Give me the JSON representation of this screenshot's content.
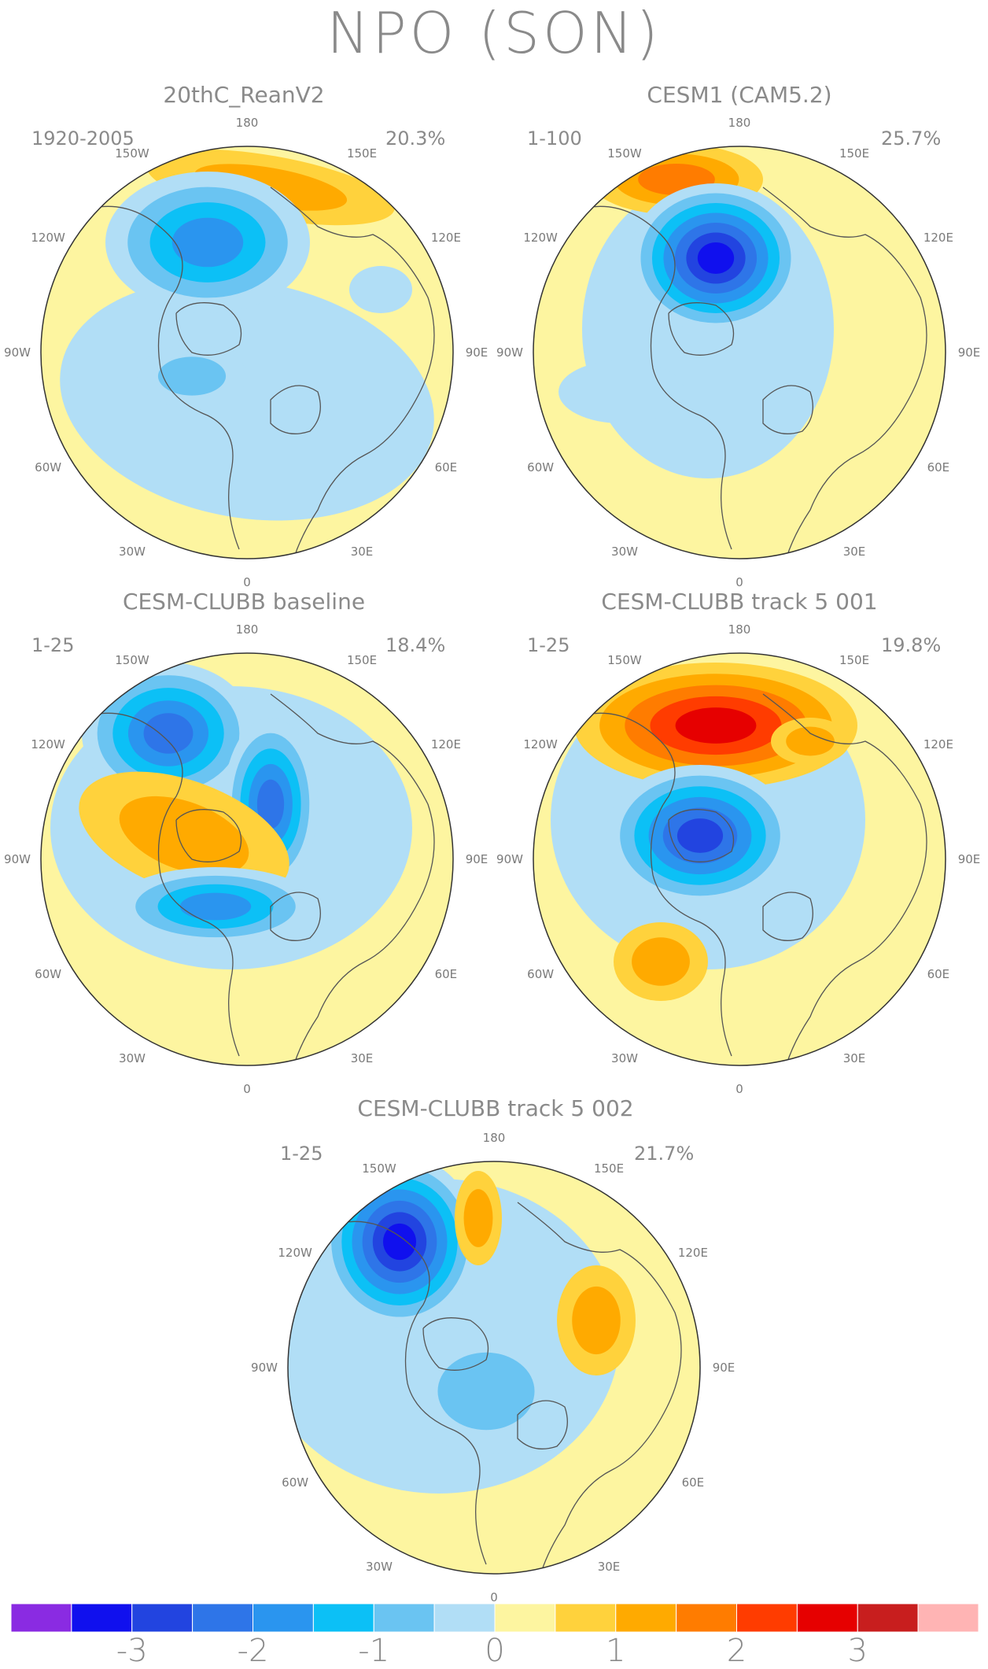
{
  "title": "NPO (SON)",
  "panels": [
    {
      "title": "20thC_ReanV2",
      "years": "1920-2005",
      "variance": "20.3%"
    },
    {
      "title": "CESM1 (CAM5.2)",
      "years": "1-100",
      "variance": "25.7%"
    },
    {
      "title": "CESM-CLUBB baseline",
      "years": "1-25",
      "variance": "18.4%"
    },
    {
      "title": "CESM-CLUBB track 5 001",
      "years": "1-25",
      "variance": "19.8%"
    },
    {
      "title": "CESM-CLUBB track 5 002",
      "years": "1-25",
      "variance": "21.7%"
    }
  ],
  "longitude_labels": [
    "180",
    "150E",
    "120E",
    "90E",
    "60E",
    "30E",
    "0",
    "30W",
    "60W",
    "90W",
    "120W",
    "150W"
  ],
  "colorbar": {
    "colors": [
      "#8a2be2",
      "#1010ee",
      "#2244e0",
      "#2e75e8",
      "#2a95ef",
      "#0cc0f6",
      "#6ac4f2",
      "#b1def6",
      "#fdf5a0",
      "#ffd23c",
      "#ffaa00",
      "#ff7c00",
      "#ff3c00",
      "#e60000",
      "#c81e1e",
      "#ffb4b4"
    ],
    "labels": [
      "-3",
      "-2",
      "-1",
      "0",
      "1",
      "2",
      "3"
    ]
  }
}
